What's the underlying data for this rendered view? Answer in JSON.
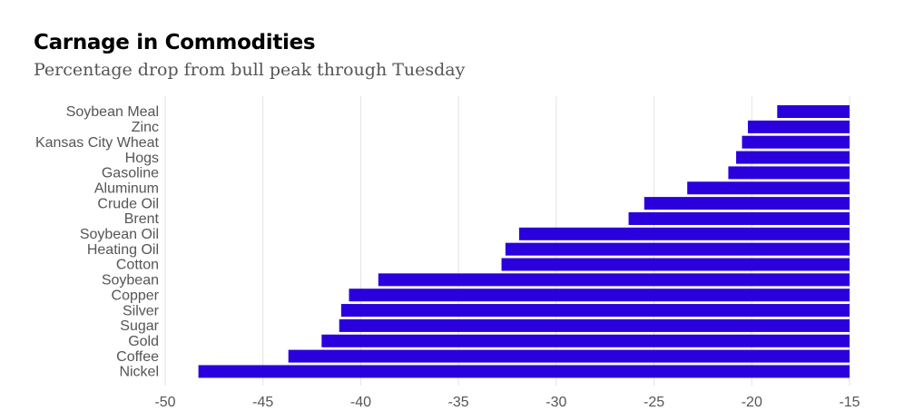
{
  "title": "Carnage in Commodities",
  "subtitle": "Percentage drop from bull peak through Tuesday",
  "colors": {
    "bar": "#2a00dc",
    "grid": "#e3e3e3",
    "label": "#555555"
  },
  "chart_data": {
    "type": "bar",
    "orientation": "horizontal",
    "title": "Carnage in Commodities",
    "subtitle": "Percentage drop from bull peak through Tuesday",
    "xlabel": "",
    "ylabel": "",
    "xlim": [
      -50,
      -15
    ],
    "xticks": [
      -50,
      -45,
      -40,
      -35,
      -30,
      -25,
      -20,
      -15
    ],
    "grid": "vertical",
    "categories": [
      "Soybean Meal",
      "Zinc",
      "Kansas City Wheat",
      "Hogs",
      "Gasoline",
      "Aluminum",
      "Crude Oil",
      "Brent",
      "Soybean Oil",
      "Heating Oil",
      "Cotton",
      "Soybean",
      "Copper",
      "Silver",
      "Sugar",
      "Gold",
      "Coffee",
      "Nickel"
    ],
    "values": [
      -18.7,
      -20.2,
      -20.5,
      -20.8,
      -21.2,
      -23.3,
      -25.5,
      -26.3,
      -31.9,
      -32.6,
      -32.8,
      -39.1,
      -40.6,
      -41.0,
      -41.1,
      -42.0,
      -43.7,
      -48.3
    ]
  }
}
